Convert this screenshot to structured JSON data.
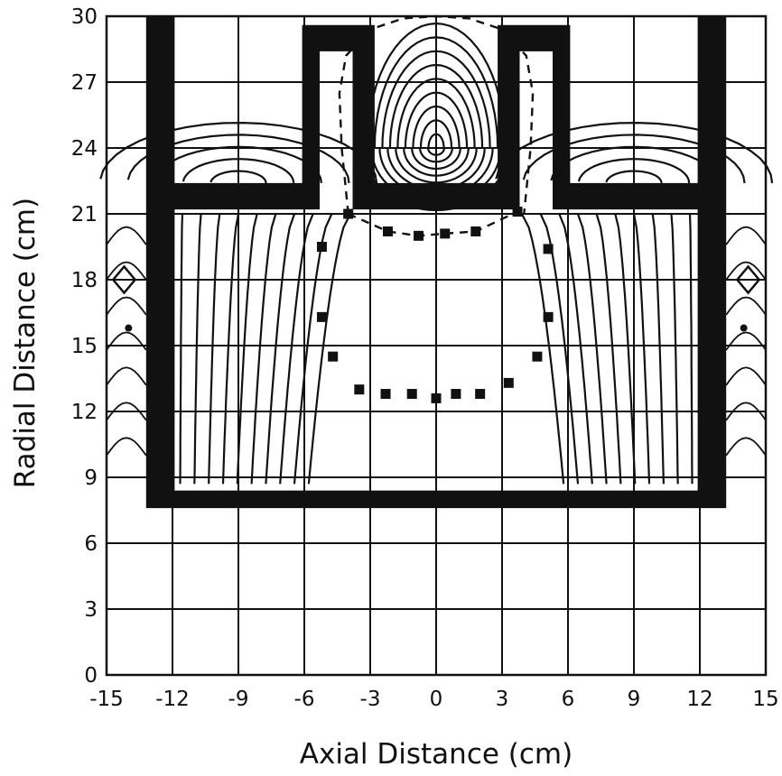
{
  "chart_data": {
    "type": "scatter",
    "title": "",
    "xlabel": "Axial Distance (cm)",
    "ylabel": "Radial Distance (cm)",
    "xlim": [
      -15,
      15
    ],
    "ylim": [
      0,
      30
    ],
    "x_ticks": [
      "-15",
      "-12",
      "-9",
      "-6",
      "-3",
      "0",
      "3",
      "6",
      "9",
      "12",
      "15"
    ],
    "y_ticks": [
      "0",
      "3",
      "6",
      "9",
      "12",
      "15",
      "18",
      "21",
      "24",
      "27",
      "30"
    ],
    "grid": true,
    "colors": {
      "ink": "#111111",
      "background": "#ffffff"
    },
    "series": [
      {
        "marker": "square",
        "x": [
          -5.2,
          -5.2,
          -4.7,
          -3.5,
          -2.3,
          -1.1,
          0,
          0.9,
          2.0,
          3.3,
          4.6,
          5.1,
          5.1
        ],
        "y": [
          19.5,
          16.3,
          14.5,
          13.0,
          12.8,
          12.8,
          12.6,
          12.8,
          12.8,
          13.3,
          14.5,
          16.3,
          19.4
        ]
      },
      {
        "marker": "square",
        "x": [
          -4.0,
          -2.2,
          -0.8,
          0.4,
          1.8,
          3.7
        ],
        "y": [
          21.0,
          20.2,
          20.0,
          20.1,
          20.2,
          21.1
        ]
      }
    ],
    "annotations": [
      {
        "kind": "dashed-contour",
        "x": [
          -4.0,
          -4.3,
          -4.4,
          -4.1,
          -3.0,
          -1.5,
          0,
          1.5,
          3.0,
          4.1,
          4.4,
          4.3,
          4.0
        ],
        "y": [
          21.0,
          24.0,
          26.5,
          28.2,
          29.4,
          29.9,
          30.0,
          29.9,
          29.4,
          28.2,
          26.5,
          24.0,
          21.0
        ]
      },
      {
        "kind": "dashed-contour",
        "x": [
          -4.0,
          -2.2,
          -0.8,
          0.4,
          1.8,
          3.7
        ],
        "y": [
          21.0,
          20.2,
          20.0,
          20.1,
          20.2,
          21.1
        ]
      }
    ],
    "structure": {
      "outer_wall": [
        [
          -13.2,
          7.6
        ],
        [
          -13.2,
          30
        ],
        [
          -11.9,
          30
        ],
        [
          -11.9,
          22.4
        ],
        [
          -6.1,
          22.4
        ],
        [
          -6.1,
          29.6
        ],
        [
          -2.8,
          29.6
        ],
        [
          -2.8,
          22.4
        ],
        [
          2.8,
          22.4
        ],
        [
          2.8,
          29.6
        ],
        [
          6.1,
          29.6
        ],
        [
          6.1,
          22.4
        ],
        [
          11.9,
          22.4
        ],
        [
          11.9,
          30
        ],
        [
          13.2,
          30
        ],
        [
          13.2,
          7.6
        ]
      ],
      "inner_wall": [
        [
          -11.9,
          8.4
        ],
        [
          -11.9,
          21.2
        ],
        [
          -5.3,
          21.2
        ],
        [
          -5.3,
          28.4
        ],
        [
          -3.8,
          28.4
        ],
        [
          -3.8,
          21.2
        ],
        [
          3.8,
          21.2
        ],
        [
          3.8,
          28.4
        ],
        [
          5.3,
          28.4
        ],
        [
          5.3,
          21.2
        ],
        [
          11.9,
          21.2
        ],
        [
          11.9,
          8.4
        ]
      ]
    }
  }
}
